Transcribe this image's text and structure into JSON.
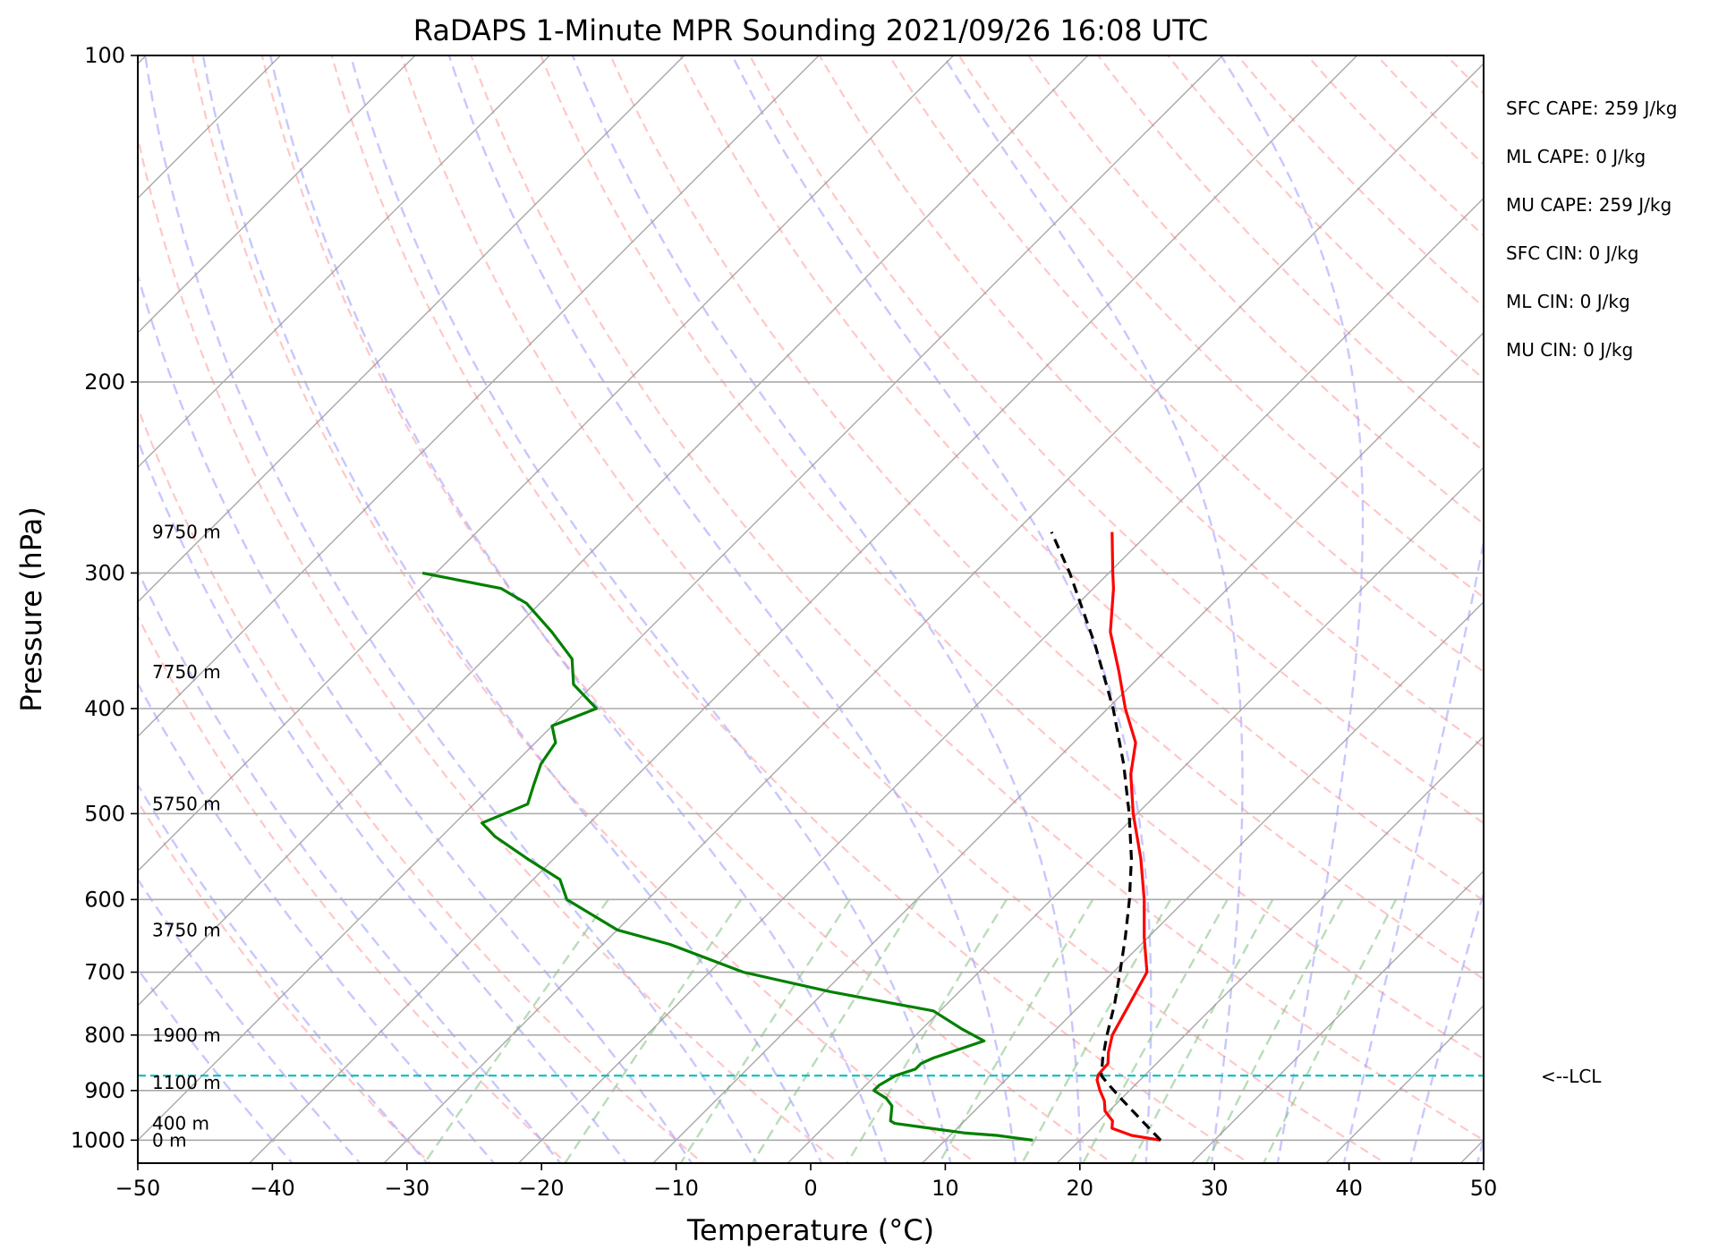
{
  "title": "RaDAPS 1-Minute MPR Sounding 2021/09/26 16:08 UTC",
  "xlabel": "Temperature (°C)",
  "ylabel": "Pressure (hPa)",
  "stats": [
    "SFC CAPE: 259 J/kg",
    "ML CAPE: 0 J/kg",
    "MU CAPE: 259 J/kg",
    "SFC CIN: 0 J/kg",
    "ML CIN: 0 J/kg",
    "MU CIN: 0 J/kg"
  ],
  "lcl_label": "<--LCL",
  "chart_data": {
    "type": "skew-t",
    "x_ticks": [
      -50,
      -40,
      -30,
      -20,
      -10,
      0,
      10,
      20,
      30,
      40,
      50
    ],
    "x_tick_labels": [
      "−50",
      "−40",
      "−30",
      "−20",
      "−10",
      "0",
      "10",
      "20",
      "30",
      "40",
      "50"
    ],
    "y_ticks": [
      100,
      200,
      300,
      400,
      500,
      600,
      700,
      800,
      900,
      1000
    ],
    "y_tick_labels": [
      "100",
      "200",
      "300",
      "400",
      "500",
      "600",
      "700",
      "800",
      "900",
      "1000"
    ],
    "xlim": [
      -50,
      50
    ],
    "ylim": [
      1050,
      100
    ],
    "y_scale": "log",
    "grid": true,
    "lcl_pressure": 872,
    "height_labels": [
      {
        "p": 275,
        "text": "9750 m"
      },
      {
        "p": 370,
        "text": "7750 m"
      },
      {
        "p": 490,
        "text": "5750 m"
      },
      {
        "p": 640,
        "text": "3750 m"
      },
      {
        "p": 800,
        "text": "1900 m"
      },
      {
        "p": 885,
        "text": "1100 m"
      },
      {
        "p": 965,
        "text": "400 m"
      },
      {
        "p": 1000,
        "text": "0 m"
      }
    ],
    "colors": {
      "temperature": "#ff0000",
      "dewpoint": "#008000",
      "parcel": "#000000",
      "lcl": "#00bfbf",
      "dry_adiabat": "#ff9999",
      "moist_adiabat": "#9999ff",
      "mixing_ratio": "#80c080",
      "isotherm": "#999999"
    },
    "temperature": {
      "pressure": [
        1000,
        990,
        975,
        960,
        940,
        920,
        900,
        880,
        870,
        850,
        830,
        800,
        760,
        700,
        650,
        600,
        550,
        500,
        460,
        430,
        400,
        370,
        340,
        310,
        300,
        275
      ],
      "values": [
        26,
        23.5,
        21.5,
        21,
        19.7,
        18.9,
        17.8,
        16.8,
        16.5,
        16.4,
        15.6,
        14.6,
        13.8,
        12.5,
        9.7,
        6.9,
        3.6,
        -0.3,
        -3.4,
        -5.4,
        -8.7,
        -11.9,
        -15.5,
        -18.5,
        -19.7,
        -22.8
      ]
    },
    "dewpoint": {
      "pressure": [
        1000,
        995,
        990,
        985,
        975,
        965,
        960,
        930,
        915,
        900,
        890,
        872,
        860,
        850,
        840,
        810,
        790,
        760,
        730,
        700,
        660,
        640,
        600,
        575,
        550,
        525,
        510,
        490,
        470,
        450,
        430,
        415,
        400,
        380,
        360,
        340,
        320,
        310,
        300
      ],
      "values": [
        16.5,
        15,
        13.5,
        11,
        8,
        5,
        4.5,
        3.5,
        2.5,
        1,
        1,
        1.5,
        2.5,
        2.5,
        3,
        5.5,
        3,
        -0.5,
        -9.5,
        -17.5,
        -25,
        -30,
        -36,
        -38,
        -42,
        -46,
        -48,
        -46,
        -47,
        -48,
        -48.5,
        -50,
        -48,
        -51.5,
        -53.5,
        -57,
        -61,
        -64,
        -71
      ]
    },
    "parcel": {
      "pressure": [
        1000,
        960,
        920,
        890,
        872,
        840,
        800,
        750,
        700,
        650,
        600,
        550,
        500,
        450,
        400,
        350,
        300,
        275
      ],
      "values": [
        26,
        23.2,
        20.3,
        18.1,
        16.8,
        15.6,
        14.2,
        12.5,
        10.5,
        8.3,
        5.8,
        2.9,
        -0.6,
        -4.7,
        -9.6,
        -15.6,
        -22.9,
        -27.3
      ]
    }
  }
}
